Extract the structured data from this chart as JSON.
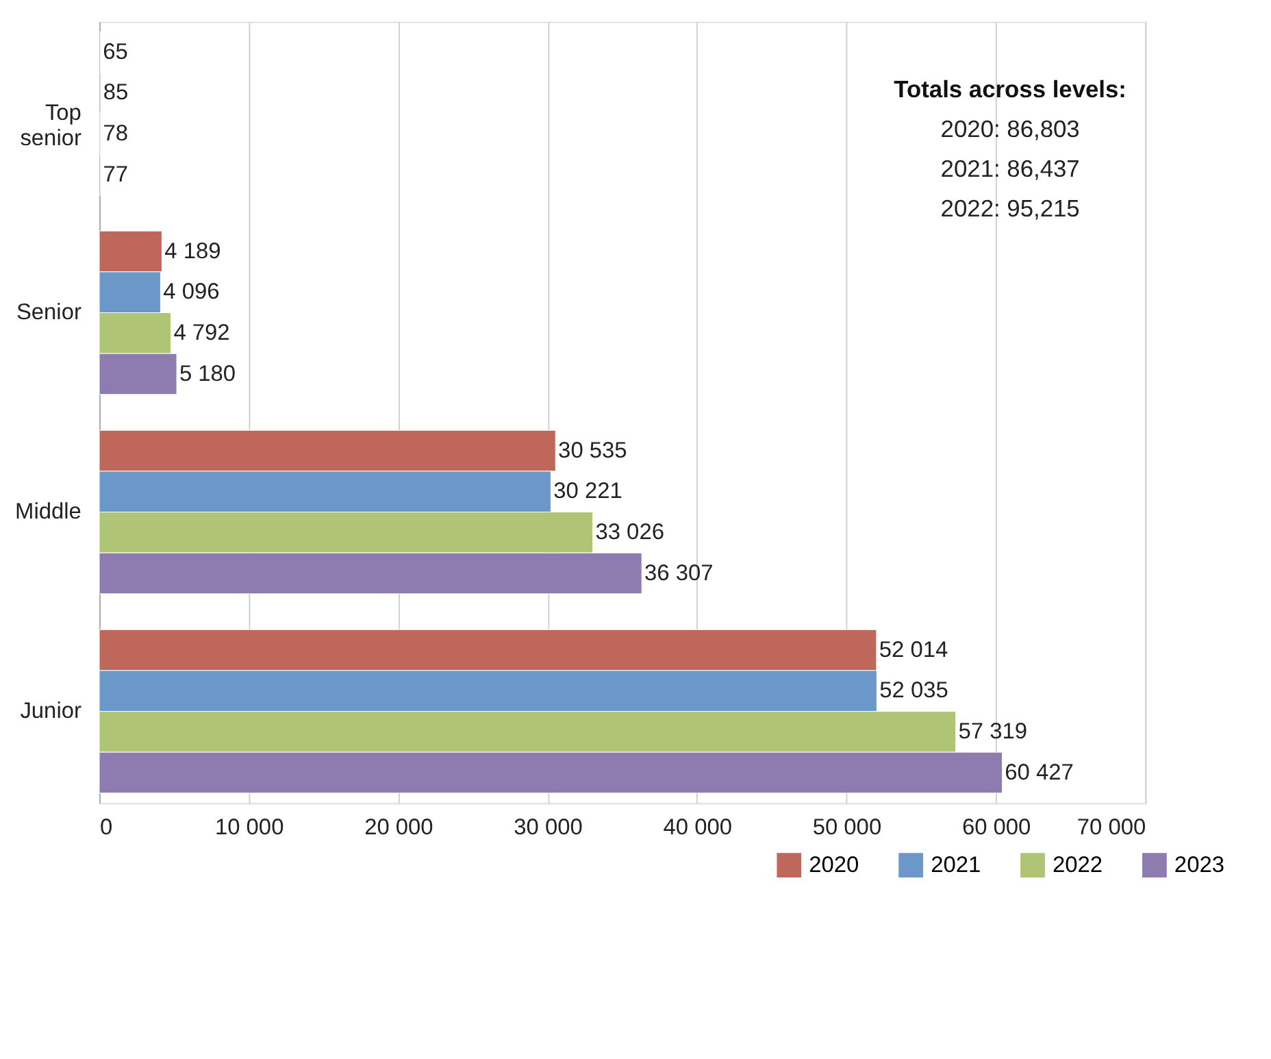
{
  "chart_data": {
    "type": "bar",
    "orientation": "horizontal",
    "categories": [
      "Top senior",
      "Senior",
      "Middle",
      "Junior"
    ],
    "series": [
      {
        "name": "2020",
        "color": "#c0675c",
        "values": [
          65,
          4189,
          30535,
          52014
        ],
        "value_labels": [
          "65",
          "4 189",
          "30 535",
          "52 014"
        ]
      },
      {
        "name": "2021",
        "color": "#6c97c9",
        "values": [
          85,
          4096,
          30221,
          52035
        ],
        "value_labels": [
          "85",
          "4 096",
          "30 221",
          "52 035"
        ]
      },
      {
        "name": "2022",
        "color": "#afc474",
        "values": [
          78,
          4792,
          33026,
          57319
        ],
        "value_labels": [
          "78",
          "4 792",
          "33 026",
          "57 319"
        ]
      },
      {
        "name": "2023",
        "color": "#8e7bb0",
        "values": [
          77,
          5180,
          36307,
          60427
        ],
        "value_labels": [
          "77",
          "5 180",
          "36 307",
          "60 427"
        ]
      }
    ],
    "xlim": [
      0,
      70000
    ],
    "xticks": [
      0,
      {
        "value": 10000,
        "label": "10 000"
      },
      {
        "value": 20000,
        "label": "20 000"
      },
      {
        "value": 30000,
        "label": "30 000"
      },
      {
        "value": 40000,
        "label": "40 000"
      },
      {
        "value": 50000,
        "label": "50 000"
      },
      {
        "value": 60000,
        "label": "60 000"
      },
      {
        "value": 70000,
        "label": "70 000"
      }
    ],
    "grid": "x",
    "legend": "bottom right",
    "annotations": [
      "Totals across levels:",
      "2020: 86,803",
      "2021: 86,437",
      "2022: 95,215"
    ]
  }
}
